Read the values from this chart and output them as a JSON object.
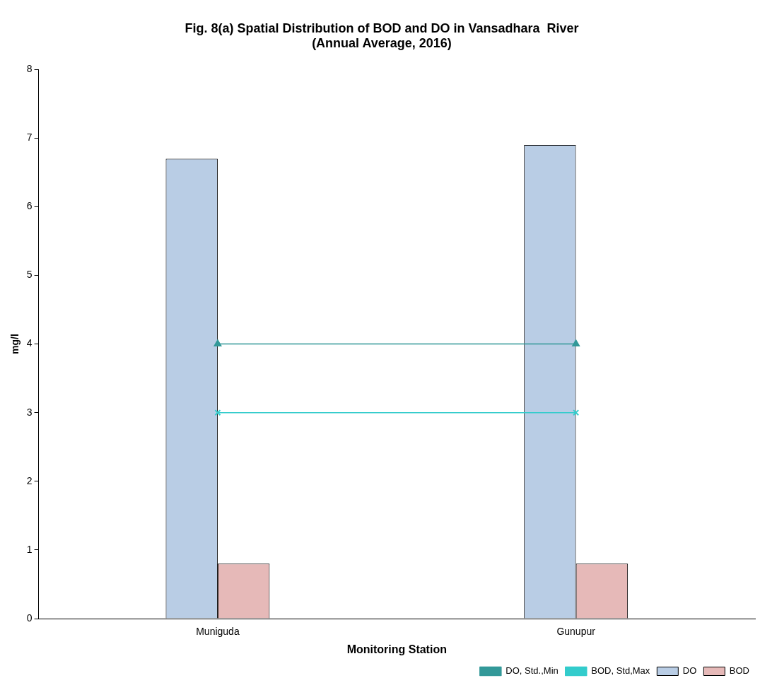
{
  "chart_data": {
    "type": "bar",
    "title": "Fig. 8(a) Spatial Distribution of BOD and DO in Vansadhara  River",
    "subtitle": "(Annual Average, 2016)",
    "xlabel": "Monitoring Station",
    "ylabel": "mg/l",
    "categories": [
      "Muniguda",
      "Gunupur"
    ],
    "series": [
      {
        "name": "DO",
        "color": "#b9cde5",
        "values": [
          6.7,
          6.9
        ]
      },
      {
        "name": "BOD",
        "color": "#e6b9b8",
        "values": [
          0.8,
          0.8
        ]
      },
      {
        "name": "DO, Std.,Min",
        "type": "line",
        "color": "#339999",
        "marker": "triangle",
        "values": [
          4,
          4
        ]
      },
      {
        "name": "BOD, Std,Max",
        "type": "line",
        "color": "#33cccc",
        "marker": "cross",
        "values": [
          3,
          3
        ]
      }
    ],
    "ylim": [
      0,
      8
    ],
    "yticks": [
      0,
      1,
      2,
      3,
      4,
      5,
      6,
      7,
      8
    ],
    "grid": false,
    "legend": "bottom right"
  }
}
